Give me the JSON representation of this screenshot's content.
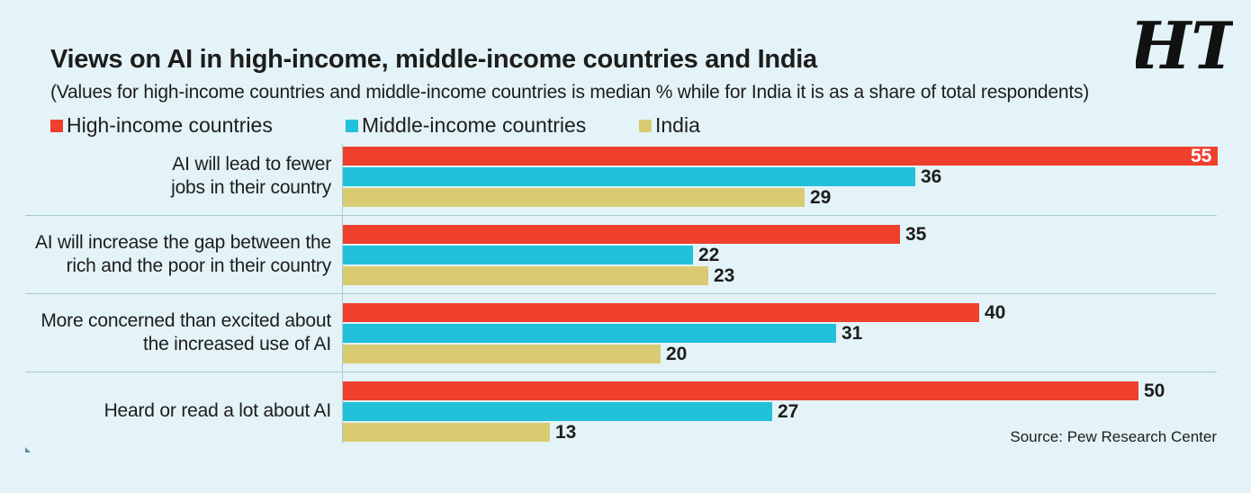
{
  "logo_text": "HT",
  "chart_data": {
    "type": "bar",
    "orientation": "horizontal",
    "title": "Views on AI in high-income, middle-income countries and India",
    "subtitle": "(Values for high-income countries and middle-income countries is median % while for India it is as a share of total respondents)",
    "categories": [
      [
        "AI will lead to fewer",
        "jobs in their country"
      ],
      [
        "AI will increase the gap between the",
        "rich and the poor in their country"
      ],
      [
        "More concerned than excited about",
        "the increased use of AI"
      ],
      [
        "Heard or read a lot about AI"
      ]
    ],
    "series": [
      {
        "name": "High-income countries",
        "color": "#ef402e",
        "values": [
          55,
          35,
          40,
          50
        ]
      },
      {
        "name": "Middle-income countries",
        "color": "#21c1d9",
        "values": [
          36,
          22,
          31,
          27
        ]
      },
      {
        "name": "India",
        "color": "#d9cb72",
        "values": [
          29,
          23,
          20,
          13
        ]
      }
    ],
    "legend_position": "top-left",
    "grid": false,
    "xlim": [
      0,
      55
    ],
    "source": "Source: Pew Research Center"
  }
}
